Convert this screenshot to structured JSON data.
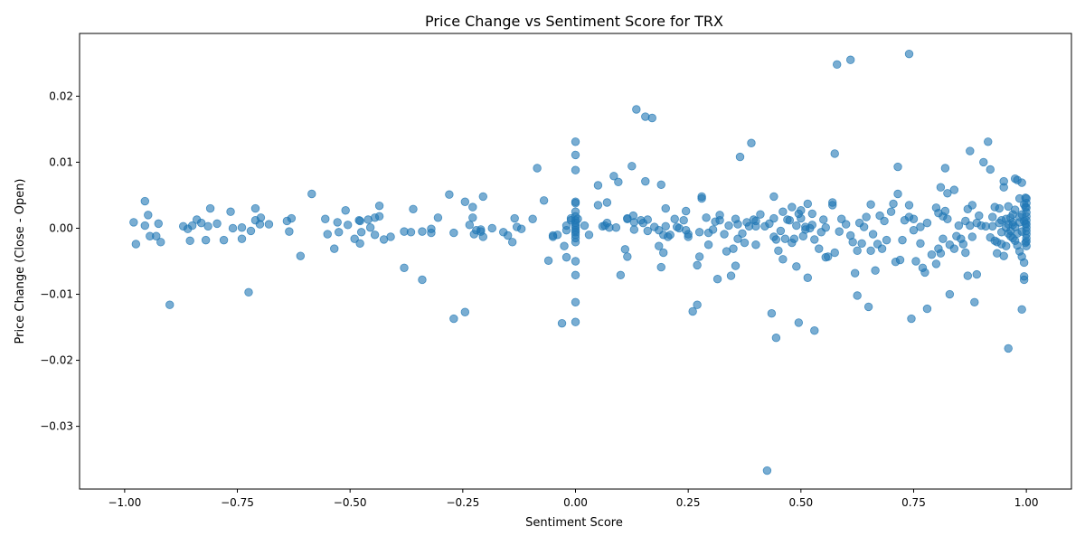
{
  "chart_data": {
    "type": "scatter",
    "title": "Price Change vs Sentiment Score for TRX",
    "xlabel": "Sentiment Score",
    "ylabel": "Price Change (Close - Open)",
    "xlim": [
      -1.1,
      1.1
    ],
    "ylim": [
      -0.0395,
      0.0295
    ],
    "xticks": [
      -1.0,
      -0.75,
      -0.5,
      -0.25,
      0.0,
      0.25,
      0.5,
      0.75,
      1.0
    ],
    "xtick_labels": [
      "−1.00",
      "−0.75",
      "−0.50",
      "−0.25",
      "0.00",
      "0.25",
      "0.50",
      "0.75",
      "1.00"
    ],
    "yticks": [
      -0.03,
      -0.02,
      -0.01,
      0.0,
      0.01,
      0.02
    ],
    "ytick_labels": [
      "−0.03",
      "−0.02",
      "−0.01",
      "0.00",
      "0.01",
      "0.02"
    ],
    "grid": false,
    "legend": "none",
    "marker_color": "#1f77b4",
    "marker_alpha": 0.6,
    "points": [
      [
        -0.98,
        0.0009
      ],
      [
        -0.975,
        -0.0024
      ],
      [
        -0.955,
        0.0041
      ],
      [
        -0.955,
        0.0004
      ],
      [
        -0.948,
        0.002
      ],
      [
        -0.944,
        -0.0012
      ],
      [
        -0.93,
        -0.0012
      ],
      [
        -0.925,
        0.0007
      ],
      [
        -0.92,
        -0.0021
      ],
      [
        -0.9,
        -0.0116
      ],
      [
        -0.87,
        0.0003
      ],
      [
        -0.86,
        -0.0001
      ],
      [
        -0.855,
        -0.0019
      ],
      [
        -0.85,
        0.0004
      ],
      [
        -0.84,
        0.0013
      ],
      [
        -0.83,
        0.0008
      ],
      [
        -0.82,
        -0.0018
      ],
      [
        -0.815,
        0.0003
      ],
      [
        -0.81,
        0.003
      ],
      [
        -0.795,
        0.0007
      ],
      [
        -0.78,
        -0.0018
      ],
      [
        -0.765,
        0.0025
      ],
      [
        -0.76,
        0.0
      ],
      [
        -0.74,
        0.0001
      ],
      [
        -0.74,
        -0.0016
      ],
      [
        -0.725,
        -0.0097
      ],
      [
        -0.72,
        -0.0004
      ],
      [
        -0.71,
        0.0012
      ],
      [
        -0.71,
        0.003
      ],
      [
        -0.7,
        0.0006
      ],
      [
        -0.698,
        0.0016
      ],
      [
        -0.68,
        0.0006
      ],
      [
        -0.64,
        0.0011
      ],
      [
        -0.635,
        -0.0005
      ],
      [
        -0.63,
        0.0015
      ],
      [
        -0.61,
        -0.0042
      ],
      [
        -0.585,
        0.0052
      ],
      [
        -0.555,
        0.0014
      ],
      [
        -0.55,
        -0.0009
      ],
      [
        -0.535,
        -0.0031
      ],
      [
        -0.528,
        0.0009
      ],
      [
        -0.525,
        -0.0006
      ],
      [
        -0.51,
        0.0027
      ],
      [
        -0.505,
        0.0005
      ],
      [
        -0.49,
        -0.0016
      ],
      [
        -0.48,
        0.0012
      ],
      [
        -0.478,
        0.0011
      ],
      [
        -0.478,
        -0.0023
      ],
      [
        -0.475,
        -0.0006
      ],
      [
        -0.46,
        0.0013
      ],
      [
        -0.455,
        0.0001
      ],
      [
        -0.445,
        0.0016
      ],
      [
        -0.445,
        -0.001
      ],
      [
        -0.435,
        0.0034
      ],
      [
        -0.435,
        0.0018
      ],
      [
        -0.425,
        -0.0017
      ],
      [
        -0.41,
        -0.0013
      ],
      [
        -0.38,
        -0.006
      ],
      [
        -0.38,
        -0.0005
      ],
      [
        -0.365,
        -0.0006
      ],
      [
        -0.36,
        0.0029
      ],
      [
        -0.34,
        -0.0078
      ],
      [
        -0.34,
        -0.0005
      ],
      [
        -0.32,
        -0.0007
      ],
      [
        -0.32,
        -0.0001
      ],
      [
        -0.305,
        0.0016
      ],
      [
        -0.28,
        0.0051
      ],
      [
        -0.27,
        -0.0137
      ],
      [
        -0.27,
        -0.0007
      ],
      [
        -0.245,
        -0.0127
      ],
      [
        -0.245,
        0.004
      ],
      [
        -0.235,
        0.0005
      ],
      [
        -0.228,
        0.0032
      ],
      [
        -0.228,
        0.0016
      ],
      [
        -0.225,
        -0.0009
      ],
      [
        -0.22,
        -0.0003
      ],
      [
        -0.21,
        -0.0005
      ],
      [
        -0.21,
        -0.0002
      ],
      [
        -0.205,
        0.0048
      ],
      [
        -0.205,
        -0.0013
      ],
      [
        -0.185,
        0.0
      ],
      [
        -0.16,
        -0.0006
      ],
      [
        -0.15,
        -0.0011
      ],
      [
        -0.14,
        -0.0021
      ],
      [
        -0.135,
        0.0015
      ],
      [
        -0.13,
        0.0002
      ],
      [
        -0.12,
        -0.0001
      ],
      [
        -0.095,
        0.0014
      ],
      [
        -0.085,
        0.0091
      ],
      [
        -0.07,
        0.0042
      ],
      [
        -0.06,
        -0.0049
      ],
      [
        -0.05,
        -0.0011
      ],
      [
        -0.05,
        -0.0013
      ],
      [
        -0.04,
        -0.001
      ],
      [
        -0.03,
        -0.0144
      ],
      [
        -0.025,
        -0.0027
      ],
      [
        -0.02,
        -0.0044
      ],
      [
        -0.02,
        0.0004
      ],
      [
        -0.02,
        -0.0003
      ],
      [
        -0.01,
        0.0012
      ],
      [
        -0.01,
        0.0015
      ],
      [
        0.0,
        0.0131
      ],
      [
        0.0,
        0.0111
      ],
      [
        0.0,
        0.0088
      ],
      [
        0.0,
        0.004
      ],
      [
        0.0,
        0.0038
      ],
      [
        0.0,
        0.0025
      ],
      [
        0.0,
        0.0018
      ],
      [
        0.0,
        0.0012
      ],
      [
        0.0,
        0.0008
      ],
      [
        0.0,
        0.0004
      ],
      [
        0.0,
        0.0001
      ],
      [
        0.0,
        -0.0003
      ],
      [
        0.0,
        -0.0006
      ],
      [
        0.0,
        -0.001
      ],
      [
        0.0,
        -0.0015
      ],
      [
        0.0,
        -0.0021
      ],
      [
        0.0,
        -0.005
      ],
      [
        0.0,
        -0.0071
      ],
      [
        0.0,
        -0.0112
      ],
      [
        0.0,
        -0.0142
      ],
      [
        0.005,
        0.0014
      ],
      [
        0.02,
        0.0004
      ],
      [
        0.03,
        -0.001
      ],
      [
        0.05,
        0.0065
      ],
      [
        0.05,
        0.0035
      ],
      [
        0.06,
        0.0003
      ],
      [
        0.065,
        0.0004
      ],
      [
        0.07,
        0.0008
      ],
      [
        0.07,
        0.0039
      ],
      [
        0.075,
        0.0001
      ],
      [
        0.085,
        0.0079
      ],
      [
        0.09,
        0.0001
      ],
      [
        0.095,
        0.007
      ],
      [
        0.1,
        -0.0071
      ],
      [
        0.11,
        -0.0032
      ],
      [
        0.115,
        0.0015
      ],
      [
        0.115,
        0.0014
      ],
      [
        0.115,
        -0.0043
      ],
      [
        0.125,
        0.0094
      ],
      [
        0.128,
        0.0019
      ],
      [
        0.13,
        0.0009
      ],
      [
        0.13,
        -0.0002
      ],
      [
        0.135,
        0.018
      ],
      [
        0.145,
        0.0012
      ],
      [
        0.15,
        0.0008
      ],
      [
        0.155,
        0.0071
      ],
      [
        0.155,
        0.0169
      ],
      [
        0.16,
        0.0013
      ],
      [
        0.16,
        -0.0004
      ],
      [
        0.17,
        0.0167
      ],
      [
        0.175,
        0.0002
      ],
      [
        0.185,
        -0.0003
      ],
      [
        0.185,
        -0.0027
      ],
      [
        0.19,
        0.0066
      ],
      [
        0.19,
        -0.0059
      ],
      [
        0.195,
        -0.0037
      ],
      [
        0.195,
        -0.001
      ],
      [
        0.2,
        0.003
      ],
      [
        0.2,
        0.0003
      ],
      [
        0.205,
        -0.0013
      ],
      [
        0.21,
        -0.001
      ],
      [
        0.22,
        0.0014
      ],
      [
        0.225,
        0.0002
      ],
      [
        0.23,
        0.0
      ],
      [
        0.24,
        0.0012
      ],
      [
        0.245,
        0.0026
      ],
      [
        0.245,
        -0.0003
      ],
      [
        0.25,
        -0.0009
      ],
      [
        0.25,
        -0.0013
      ],
      [
        0.26,
        -0.0126
      ],
      [
        0.27,
        -0.0116
      ],
      [
        0.27,
        -0.0056
      ],
      [
        0.275,
        -0.0043
      ],
      [
        0.275,
        -0.0006
      ],
      [
        0.28,
        0.0048
      ],
      [
        0.28,
        0.0045
      ],
      [
        0.29,
        0.0016
      ],
      [
        0.295,
        -0.0025
      ],
      [
        0.295,
        -0.0007
      ],
      [
        0.305,
        -0.0002
      ],
      [
        0.31,
        0.001
      ],
      [
        0.315,
        -0.0077
      ],
      [
        0.32,
        0.002
      ],
      [
        0.32,
        0.0012
      ],
      [
        0.33,
        -0.0009
      ],
      [
        0.335,
        -0.0035
      ],
      [
        0.34,
        0.0004
      ],
      [
        0.345,
        -0.0072
      ],
      [
        0.35,
        -0.0031
      ],
      [
        0.355,
        0.0014
      ],
      [
        0.355,
        -0.0057
      ],
      [
        0.36,
        0.0006
      ],
      [
        0.36,
        -0.0016
      ],
      [
        0.365,
        0.0108
      ],
      [
        0.37,
        -0.0008
      ],
      [
        0.375,
        -0.0022
      ],
      [
        0.38,
        0.0009
      ],
      [
        0.385,
        0.0003
      ],
      [
        0.39,
        0.0129
      ],
      [
        0.395,
        0.0013
      ],
      [
        0.4,
        0.0011
      ],
      [
        0.4,
        0.0003
      ],
      [
        0.4,
        -0.0025
      ],
      [
        0.41,
        0.0021
      ],
      [
        0.42,
        0.0003
      ],
      [
        0.425,
        -0.0367
      ],
      [
        0.43,
        0.0007
      ],
      [
        0.435,
        -0.0129
      ],
      [
        0.44,
        0.0048
      ],
      [
        0.44,
        0.0015
      ],
      [
        0.44,
        -0.0013
      ],
      [
        0.445,
        -0.0166
      ],
      [
        0.445,
        -0.0017
      ],
      [
        0.45,
        -0.0034
      ],
      [
        0.455,
        -0.0004
      ],
      [
        0.46,
        -0.0047
      ],
      [
        0.46,
        0.0025
      ],
      [
        0.465,
        -0.0016
      ],
      [
        0.47,
        0.0013
      ],
      [
        0.475,
        0.0012
      ],
      [
        0.48,
        0.0032
      ],
      [
        0.48,
        -0.0022
      ],
      [
        0.485,
        -0.0016
      ],
      [
        0.49,
        -0.0058
      ],
      [
        0.49,
        0.0004
      ],
      [
        0.495,
        0.0022
      ],
      [
        0.495,
        -0.0143
      ],
      [
        0.5,
        0.0027
      ],
      [
        0.5,
        0.0015
      ],
      [
        0.505,
        -0.0012
      ],
      [
        0.51,
        0.0002
      ],
      [
        0.51,
        -0.0002
      ],
      [
        0.515,
        0.0037
      ],
      [
        0.515,
        -0.0075
      ],
      [
        0.52,
        0.0
      ],
      [
        0.525,
        0.0022
      ],
      [
        0.525,
        0.0005
      ],
      [
        0.53,
        -0.0155
      ],
      [
        0.53,
        -0.0017
      ],
      [
        0.54,
        -0.0031
      ],
      [
        0.545,
        -0.0006
      ],
      [
        0.55,
        0.0013
      ],
      [
        0.555,
        -0.0044
      ],
      [
        0.555,
        0.0001
      ],
      [
        0.56,
        -0.0043
      ],
      [
        0.57,
        0.0039
      ],
      [
        0.57,
        0.0035
      ],
      [
        0.575,
        0.0113
      ],
      [
        0.575,
        -0.0037
      ],
      [
        0.58,
        0.0248
      ],
      [
        0.585,
        -0.0005
      ],
      [
        0.59,
        0.0014
      ],
      [
        0.6,
        0.0006
      ],
      [
        0.61,
        0.0255
      ],
      [
        0.61,
        -0.0011
      ],
      [
        0.615,
        -0.0021
      ],
      [
        0.62,
        -0.0068
      ],
      [
        0.625,
        -0.0034
      ],
      [
        0.625,
        -0.0102
      ],
      [
        0.63,
        0.0008
      ],
      [
        0.635,
        -0.0023
      ],
      [
        0.64,
        0.0002
      ],
      [
        0.645,
        0.0017
      ],
      [
        0.65,
        -0.0119
      ],
      [
        0.655,
        0.0036
      ],
      [
        0.655,
        -0.0034
      ],
      [
        0.66,
        -0.0009
      ],
      [
        0.665,
        -0.0064
      ],
      [
        0.67,
        -0.0024
      ],
      [
        0.675,
        0.0019
      ],
      [
        0.68,
        -0.0031
      ],
      [
        0.685,
        0.0011
      ],
      [
        0.69,
        -0.0018
      ],
      [
        0.7,
        0.0025
      ],
      [
        0.705,
        0.0037
      ],
      [
        0.71,
        -0.0051
      ],
      [
        0.715,
        0.0093
      ],
      [
        0.715,
        0.0052
      ],
      [
        0.72,
        -0.0048
      ],
      [
        0.725,
        -0.0018
      ],
      [
        0.73,
        0.0012
      ],
      [
        0.74,
        0.0264
      ],
      [
        0.74,
        0.0017
      ],
      [
        0.74,
        0.0035
      ],
      [
        0.745,
        -0.0137
      ],
      [
        0.75,
        0.0014
      ],
      [
        0.75,
        -0.0003
      ],
      [
        0.755,
        -0.005
      ],
      [
        0.765,
        0.0002
      ],
      [
        0.765,
        -0.0023
      ],
      [
        0.77,
        -0.006
      ],
      [
        0.775,
        -0.0067
      ],
      [
        0.78,
        0.0008
      ],
      [
        0.78,
        -0.0122
      ],
      [
        0.79,
        -0.004
      ],
      [
        0.8,
        0.0031
      ],
      [
        0.8,
        -0.0054
      ],
      [
        0.805,
        0.0023
      ],
      [
        0.805,
        -0.0031
      ],
      [
        0.81,
        0.0062
      ],
      [
        0.81,
        -0.0038
      ],
      [
        0.815,
        0.0018
      ],
      [
        0.815,
        -0.0016
      ],
      [
        0.82,
        0.0091
      ],
      [
        0.82,
        0.0026
      ],
      [
        0.825,
        0.0053
      ],
      [
        0.825,
        0.0014
      ],
      [
        0.83,
        -0.01
      ],
      [
        0.83,
        -0.0025
      ],
      [
        0.84,
        0.0058
      ],
      [
        0.84,
        -0.0031
      ],
      [
        0.845,
        -0.0012
      ],
      [
        0.85,
        0.0004
      ],
      [
        0.855,
        -0.0016
      ],
      [
        0.86,
        -0.0024
      ],
      [
        0.865,
        0.0011
      ],
      [
        0.865,
        -0.0037
      ],
      [
        0.87,
        -0.0072
      ],
      [
        0.87,
        0.0029
      ],
      [
        0.875,
        0.0117
      ],
      [
        0.875,
        0.0004
      ],
      [
        0.88,
        -0.0013
      ],
      [
        0.88,
        0.0035
      ],
      [
        0.885,
        -0.0112
      ],
      [
        0.89,
        0.0008
      ],
      [
        0.89,
        -0.007
      ],
      [
        0.895,
        0.0019
      ],
      [
        0.9,
        0.0004
      ],
      [
        0.905,
        0.01
      ],
      [
        0.91,
        0.0003
      ],
      [
        0.915,
        0.0131
      ],
      [
        0.92,
        0.0089
      ],
      [
        0.92,
        -0.0014
      ],
      [
        0.925,
        0.0017
      ],
      [
        0.925,
        0.0003
      ],
      [
        0.93,
        0.0032
      ],
      [
        0.93,
        -0.0019
      ],
      [
        0.935,
        -0.0038
      ],
      [
        0.935,
        -0.0021
      ],
      [
        0.94,
        0.003
      ],
      [
        0.94,
        0.0008
      ],
      [
        0.945,
        -0.0024
      ],
      [
        0.945,
        -0.0006
      ],
      [
        0.95,
        0.0071
      ],
      [
        0.95,
        0.0062
      ],
      [
        0.95,
        -0.0042
      ],
      [
        0.955,
        0.0014
      ],
      [
        0.955,
        -0.0027
      ],
      [
        0.96,
        -0.0182
      ],
      [
        0.96,
        0.0033
      ],
      [
        0.96,
        0.0006
      ],
      [
        0.965,
        -0.0012
      ],
      [
        0.965,
        -0.0004
      ],
      [
        0.97,
        0.0021
      ],
      [
        0.97,
        0.0009
      ],
      [
        0.97,
        -0.0015
      ],
      [
        0.975,
        0.0075
      ],
      [
        0.975,
        0.0028
      ],
      [
        0.975,
        0.0002
      ],
      [
        0.98,
        0.0073
      ],
      [
        0.98,
        -0.0008
      ],
      [
        0.98,
        -0.0026
      ],
      [
        0.985,
        0.0045
      ],
      [
        0.985,
        0.0017
      ],
      [
        0.985,
        -0.0035
      ],
      [
        0.99,
        0.0069
      ],
      [
        0.99,
        0.0021
      ],
      [
        0.99,
        -0.0005
      ],
      [
        0.99,
        -0.0123
      ],
      [
        0.99,
        -0.0043
      ],
      [
        0.995,
        0.0036
      ],
      [
        0.995,
        -0.0052
      ],
      [
        0.995,
        -0.0073
      ],
      [
        0.995,
        -0.0078
      ],
      [
        0.995,
        0.0011
      ],
      [
        0.998,
        0.0046
      ],
      [
        0.998,
        0.0032
      ],
      [
        0.998,
        -0.0022
      ],
      [
        0.998,
        0.0007
      ],
      [
        1.0,
        0.0045
      ],
      [
        1.0,
        0.0038
      ],
      [
        1.0,
        0.0031
      ],
      [
        1.0,
        0.0024
      ],
      [
        1.0,
        0.0018
      ],
      [
        1.0,
        0.0012
      ],
      [
        1.0,
        0.0006
      ],
      [
        1.0,
        0.0001
      ],
      [
        1.0,
        -0.0004
      ],
      [
        1.0,
        -0.0009
      ],
      [
        1.0,
        -0.0015
      ],
      [
        1.0,
        -0.002
      ],
      [
        1.0,
        -0.0027
      ],
      [
        0.965,
        0.0016
      ],
      [
        0.955,
        0.0001
      ],
      [
        0.945,
        0.0012
      ],
      [
        0.975,
        -0.0019
      ],
      [
        0.985,
        0.0009
      ],
      [
        0.97,
        0.0005
      ],
      [
        0.96,
        -0.0008
      ]
    ]
  }
}
